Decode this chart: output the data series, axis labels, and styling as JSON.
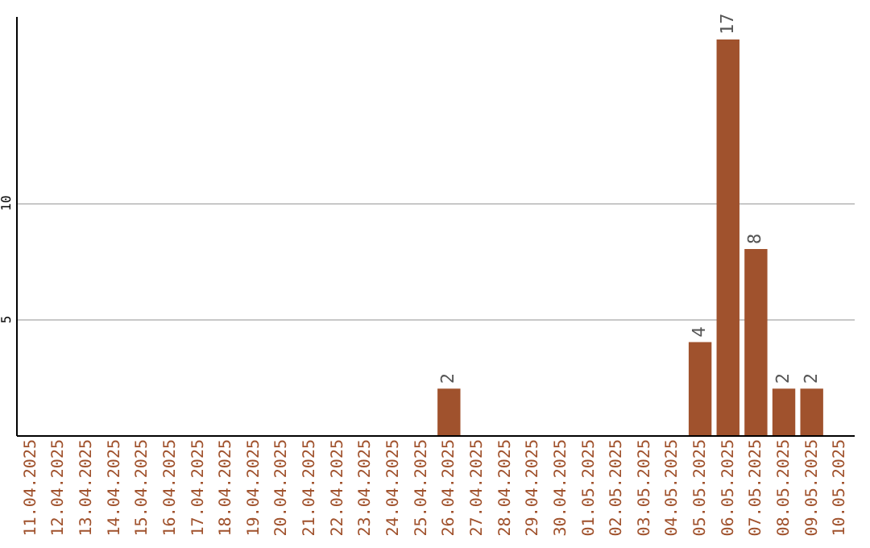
{
  "chart_data": {
    "type": "bar",
    "categories": [
      "11.04.2025",
      "12.04.2025",
      "13.04.2025",
      "14.04.2025",
      "15.04.2025",
      "16.04.2025",
      "17.04.2025",
      "18.04.2025",
      "19.04.2025",
      "20.04.2025",
      "21.04.2025",
      "22.04.2025",
      "23.04.2025",
      "24.04.2025",
      "25.04.2025",
      "26.04.2025",
      "27.04.2025",
      "28.04.2025",
      "29.04.2025",
      "30.04.2025",
      "01.05.2025",
      "02.05.2025",
      "03.05.2025",
      "04.05.2025",
      "05.05.2025",
      "06.05.2025",
      "07.05.2025",
      "08.05.2025",
      "09.05.2025",
      "10.05.2025"
    ],
    "values": [
      0,
      0,
      0,
      0,
      0,
      0,
      0,
      0,
      0,
      0,
      0,
      0,
      0,
      0,
      0,
      2,
      0,
      0,
      0,
      0,
      0,
      0,
      0,
      0,
      4,
      17,
      8,
      2,
      2,
      0
    ],
    "value_labels": [
      null,
      null,
      null,
      null,
      null,
      null,
      null,
      null,
      null,
      null,
      null,
      null,
      null,
      null,
      null,
      "2",
      null,
      null,
      null,
      null,
      null,
      null,
      null,
      null,
      "4",
      "17",
      "8",
      "2",
      "2",
      null
    ],
    "color": "#a0522d",
    "ylim": [
      0,
      18
    ],
    "yticks": [
      5,
      10
    ],
    "grid": "y"
  }
}
